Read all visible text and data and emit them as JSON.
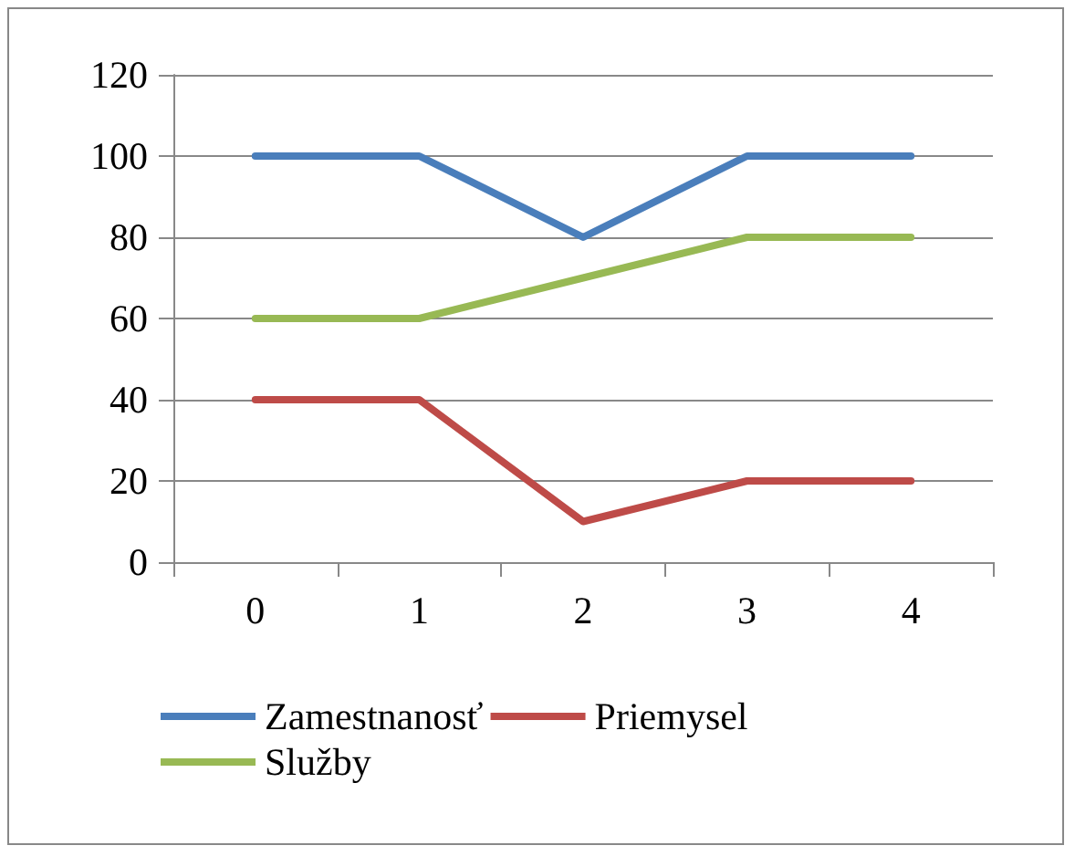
{
  "chart_data": {
    "type": "line",
    "categories": [
      "0",
      "1",
      "2",
      "3",
      "4"
    ],
    "series": [
      {
        "name": "Zamestnanosť",
        "color": "#4a7ebb",
        "values": [
          100,
          100,
          80,
          100,
          100
        ]
      },
      {
        "name": "Priemysel",
        "color": "#be4b48",
        "values": [
          40,
          40,
          10,
          20,
          20
        ]
      },
      {
        "name": "Služby",
        "color": "#98b954",
        "values": [
          60,
          60,
          70,
          80,
          80
        ]
      }
    ],
    "ylim": [
      0,
      120
    ],
    "yticks": [
      0,
      20,
      40,
      60,
      80,
      100,
      120
    ],
    "grid": "y",
    "legend": "bottom",
    "marker": "none",
    "line_style": "solid"
  }
}
